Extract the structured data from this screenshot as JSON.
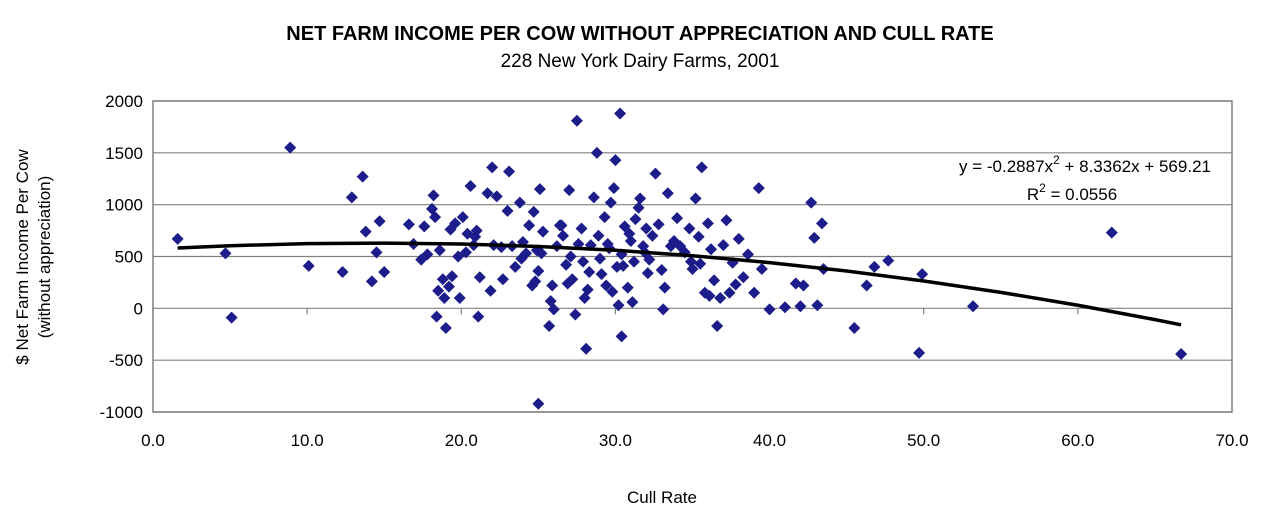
{
  "chart_data": {
    "type": "scatter",
    "title": "NET FARM INCOME PER COW WITHOUT APPRECIATION AND CULL RATE",
    "subtitle": "228 New York Dairy Farms, 2001",
    "x_label": "Cull Rate",
    "y_label": [
      "$ Net Farm Income Per Cow",
      "(without appreciation)"
    ],
    "color": "#1c1c8a",
    "grid": true,
    "xlim": [
      0,
      70
    ],
    "ylim": [
      -1000,
      2000
    ],
    "xticks": [
      {
        "value": 0,
        "label": "0.0"
      },
      {
        "value": 10,
        "label": "10.0"
      },
      {
        "value": 20,
        "label": "20.0"
      },
      {
        "value": 30,
        "label": "30.0"
      },
      {
        "value": 40,
        "label": "40.0"
      },
      {
        "value": 50,
        "label": "50.0"
      },
      {
        "value": 60,
        "label": "60.0"
      },
      {
        "value": 70,
        "label": "70.0"
      }
    ],
    "yticks": [
      -1000,
      -500,
      0,
      500,
      1000,
      1500,
      2000
    ],
    "x": [
      1.6,
      4.7,
      5.1,
      8.9,
      10.1,
      12.3,
      12.9,
      13.6,
      13.8,
      14.2,
      14.5,
      14.7,
      15.0,
      16.6,
      16.9,
      17.4,
      17.6,
      17.8,
      18.1,
      18.2,
      18.3,
      18.4,
      18.5,
      18.6,
      18.8,
      18.9,
      19.0,
      19.2,
      19.3,
      19.6,
      19.8,
      19.9,
      20.1,
      20.3,
      20.4,
      20.6,
      20.8,
      21.0,
      21.1,
      21.2,
      21.7,
      22.0,
      22.1,
      22.3,
      22.6,
      22.7,
      23.0,
      23.1,
      23.3,
      23.5,
      23.8,
      24.0,
      24.2,
      24.4,
      24.6,
      24.7,
      24.8,
      25.0,
      25.0,
      25.1,
      25.2,
      25.3,
      25.7,
      25.8,
      25.9,
      26.0,
      26.2,
      26.4,
      26.6,
      26.8,
      26.9,
      27.0,
      27.2,
      27.4,
      27.5,
      27.6,
      27.8,
      27.9,
      28.0,
      28.1,
      28.2,
      28.4,
      28.6,
      28.8,
      28.9,
      29.0,
      29.1,
      29.3,
      29.5,
      29.7,
      29.8,
      29.9,
      30.0,
      30.1,
      30.2,
      30.3,
      30.4,
      30.4,
      30.6,
      30.8,
      31.0,
      31.1,
      31.3,
      31.5,
      31.6,
      31.8,
      32.0,
      32.2,
      32.4,
      32.6,
      32.8,
      33.0,
      33.1,
      33.2,
      33.4,
      33.6,
      34.0,
      34.2,
      34.5,
      34.8,
      35.0,
      35.2,
      35.4,
      35.6,
      35.8,
      36.0,
      36.2,
      36.4,
      36.6,
      36.8,
      37.0,
      37.2,
      37.4,
      37.6,
      38.0,
      38.3,
      38.6,
      39.0,
      39.3,
      39.5,
      40.0,
      41.0,
      41.7,
      42.0,
      42.2,
      42.7,
      42.9,
      43.1,
      43.4,
      43.5,
      45.5,
      46.3,
      46.8,
      47.7,
      49.7,
      49.9,
      53.2,
      62.2,
      66.7,
      29.6,
      31.2,
      30.9,
      32.1,
      28.3,
      27.1,
      26.5,
      33.8,
      34.9,
      36.1,
      37.8,
      31.9,
      30.5,
      29.4,
      24.9,
      23.9,
      21.9,
      20.9,
      19.4,
      35.5
    ],
    "values": [
      670,
      530,
      -90,
      1550,
      410,
      350,
      1070,
      1270,
      740,
      260,
      540,
      840,
      350,
      810,
      620,
      470,
      790,
      520,
      960,
      1090,
      880,
      -80,
      170,
      560,
      280,
      100,
      -190,
      210,
      760,
      820,
      500,
      100,
      880,
      540,
      720,
      1180,
      610,
      750,
      -80,
      300,
      1110,
      1360,
      610,
      1080,
      590,
      280,
      940,
      1320,
      600,
      400,
      1020,
      640,
      530,
      800,
      220,
      930,
      260,
      -920,
      360,
      1150,
      530,
      740,
      -170,
      70,
      220,
      -10,
      600,
      800,
      700,
      420,
      240,
      1140,
      280,
      -60,
      1810,
      620,
      770,
      450,
      100,
      -390,
      180,
      610,
      1070,
      1500,
      700,
      480,
      330,
      880,
      620,
      1020,
      160,
      1160,
      1430,
      400,
      30,
      1880,
      -270,
      520,
      790,
      200,
      650,
      60,
      860,
      970,
      1060,
      600,
      770,
      470,
      700,
      1300,
      810,
      370,
      -10,
      200,
      1110,
      600,
      870,
      600,
      540,
      770,
      380,
      1060,
      690,
      1360,
      150,
      820,
      570,
      270,
      -170,
      100,
      610,
      850,
      150,
      440,
      670,
      300,
      520,
      150,
      1160,
      380,
      -10,
      10,
      240,
      20,
      220,
      1020,
      680,
      30,
      820,
      380,
      -190,
      220,
      400,
      460,
      -430,
      330,
      20,
      730,
      -440,
      580,
      450,
      720,
      340,
      350,
      500,
      800,
      650,
      450,
      120,
      230,
      540,
      410,
      220,
      560,
      480,
      170,
      690,
      310,
      430
    ],
    "trendline": {
      "x": [
        1.6,
        5,
        10,
        15,
        20,
        25,
        30,
        35,
        40,
        45,
        50,
        55,
        60,
        65,
        66.7
      ],
      "y": [
        582,
        604,
        624,
        629,
        621,
        597,
        560,
        507,
        441,
        360,
        264,
        154,
        30,
        -109,
        -159
      ]
    },
    "equation": [
      "y = -0.2887x",
      "2",
      " + 8.3362x + 569.21"
    ],
    "r_squared": [
      "R",
      "2",
      " = 0.0556"
    ]
  }
}
